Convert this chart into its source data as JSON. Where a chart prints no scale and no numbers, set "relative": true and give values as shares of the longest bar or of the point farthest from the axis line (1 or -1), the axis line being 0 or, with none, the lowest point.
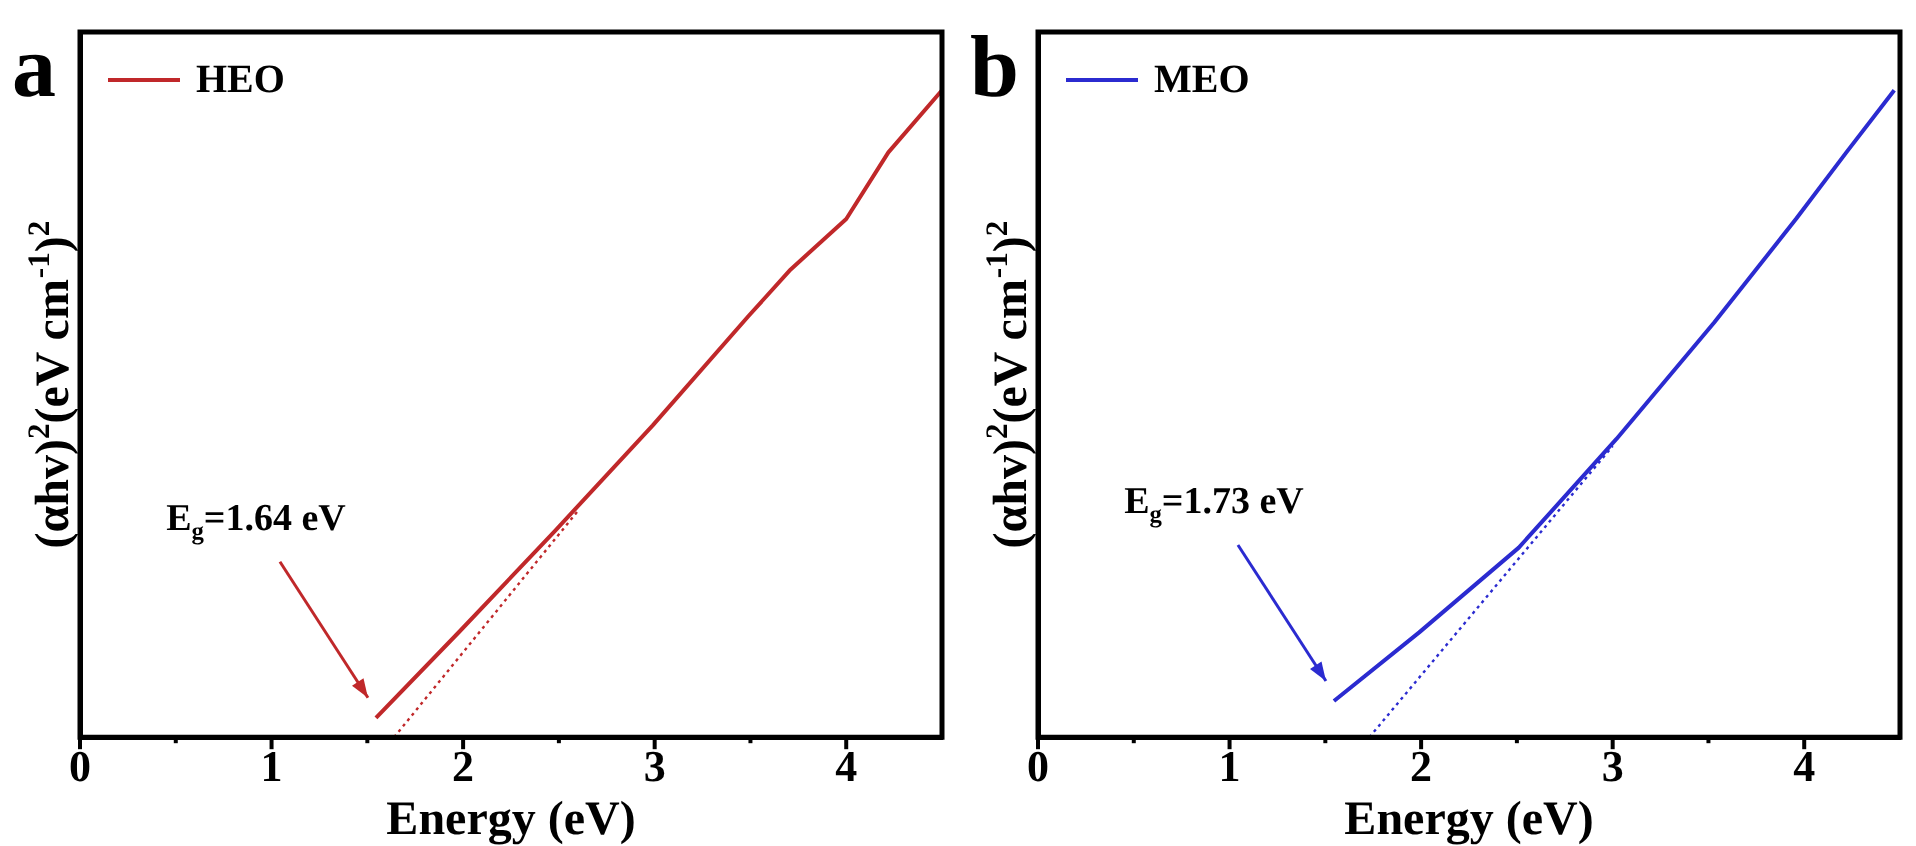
{
  "chart_data": [
    {
      "type": "line",
      "title": "a",
      "xlabel": "Energy (eV)",
      "ylabel": "(αhv)$^{2}$(eV cm$^{-1}$)$^{2}$",
      "relative": true,
      "xlim": [
        0,
        4.5
      ],
      "xticks": [
        0,
        {
          "value": 0.5,
          "label": null
        },
        1,
        {
          "value": 1.5,
          "label": null
        },
        2,
        {
          "value": 2.5,
          "label": null
        },
        3,
        {
          "value": 3.5,
          "label": null
        },
        4
      ],
      "legend": "top left",
      "grid": false,
      "series": [
        {
          "name": "HEO",
          "color": "#c0282a",
          "line_style": "solid",
          "x": [
            1.545,
            1.98,
            2.48,
            2.99,
            3.49,
            3.71,
            4.0,
            4.22,
            4.5
          ],
          "values": [
            0.03,
            0.163,
            0.319,
            0.482,
            0.651,
            0.723,
            0.801,
            0.904,
            1.0
          ]
        },
        {
          "color": "#c0282a",
          "line_style": "dotted",
          "x": [
            1.64,
            2.6
          ],
          "values": [
            0,
            0.35
          ]
        }
      ],
      "annotations": [
        "E$_{g}$=1.64 eV"
      ]
    },
    {
      "type": "line",
      "title": "b",
      "xlabel": "Energy (eV)",
      "ylabel": "(αhv)$^{2}$(eV cm$^{-1}$)$^{2}$",
      "relative": true,
      "xlim": [
        0,
        4.5
      ],
      "xticks": [
        0,
        {
          "value": 0.5,
          "label": null
        },
        1,
        {
          "value": 1.5,
          "label": null
        },
        2,
        {
          "value": 2.5,
          "label": null
        },
        3,
        {
          "value": 3.5,
          "label": null
        },
        4
      ],
      "legend": "top left",
      "grid": false,
      "series": [
        {
          "name": "MEO",
          "color": "#2b2bd0",
          "line_style": "solid",
          "x": [
            1.545,
            1.99,
            2.51,
            3.02,
            3.53,
            3.96,
            4.22,
            4.47
          ],
          "values": [
            0.056,
            0.162,
            0.293,
            0.461,
            0.641,
            0.802,
            0.904,
            1.0
          ]
        },
        {
          "color": "#2b2bd0",
          "line_style": "dotted",
          "x": [
            1.73,
            3.0
          ],
          "values": [
            0,
            0.45
          ]
        }
      ],
      "annotations": [
        "E$_{g}$=1.73 eV"
      ]
    }
  ]
}
